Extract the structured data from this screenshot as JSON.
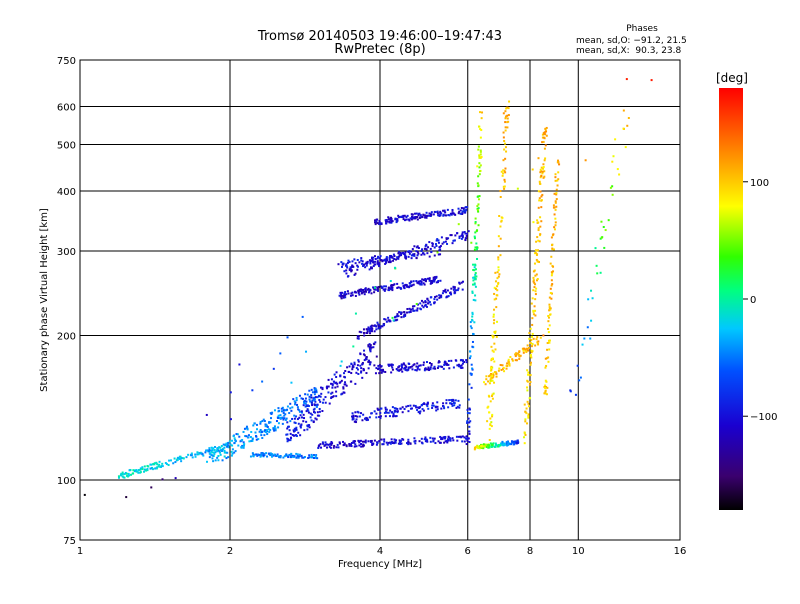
{
  "chart_data": {
    "type": "scatter",
    "title": "Tromsø 20140503 19:46:00–19:47:43",
    "subtitle": "RwPretec (8p)",
    "xlabel": "Frequency [MHz]",
    "ylabel": "Stationary phase Virtual Height [km]",
    "x_scale": "log",
    "y_scale": "log",
    "xlim": [
      1,
      16
    ],
    "ylim": [
      75,
      750
    ],
    "x_ticks": [
      1,
      2,
      4,
      6,
      8,
      10,
      16
    ],
    "x_tick_labels": [
      "1",
      "2",
      "4",
      "6",
      "8",
      "10",
      "16"
    ],
    "y_ticks": [
      75,
      100,
      200,
      300,
      400,
      500,
      600,
      750
    ],
    "y_tick_labels": [
      "75",
      "100",
      "200",
      "300",
      "400",
      "500",
      "600",
      "750"
    ],
    "grid": true,
    "phase_info": {
      "title": "Phases",
      "line_o": "mean, sd,O: −91.2, 21.5",
      "line_x": "mean, sd,X:  90.3, 23.8"
    },
    "colorbar": {
      "label": "[deg]",
      "min": -180,
      "max": 180,
      "ticks": [
        100,
        0,
        -100
      ],
      "tick_labels": [
        "100",
        "0",
        "−100"
      ],
      "colormap": "rainbow (black → violet → blue → cyan → green → yellow → red)"
    },
    "series": [
      {
        "traces": [
          {
            "f0": 1.2,
            "f1": 2.0,
            "h0": 102,
            "h1": 118,
            "n": 150,
            "ph0": -10,
            "ph1": -40,
            "jit": 0.03
          },
          {
            "f0": 1.8,
            "f1": 3.0,
            "h0": 110,
            "h1": 150,
            "n": 240,
            "ph0": -30,
            "ph1": -60,
            "jit": 0.09
          },
          {
            "f0": 2.2,
            "f1": 3.0,
            "h0": 113,
            "h1": 112,
            "n": 90,
            "ph0": -50,
            "ph1": -50,
            "jit": 0.02
          },
          {
            "f0": 2.6,
            "f1": 3.9,
            "h0": 125,
            "h1": 185,
            "n": 220,
            "ph0": -90,
            "ph1": -110,
            "jit": 0.12
          },
          {
            "f0": 3.0,
            "f1": 6.0,
            "h0": 118,
            "h1": 122,
            "n": 170,
            "ph0": -110,
            "ph1": -100,
            "jit": 0.03
          },
          {
            "f0": 3.5,
            "f1": 5.8,
            "h0": 135,
            "h1": 145,
            "n": 140,
            "ph0": -100,
            "ph1": -90,
            "jit": 0.05
          },
          {
            "f0": 3.9,
            "f1": 6.0,
            "h0": 170,
            "h1": 175,
            "n": 130,
            "ph0": -110,
            "ph1": -100,
            "jit": 0.04
          },
          {
            "f0": 3.6,
            "f1": 5.9,
            "h0": 200,
            "h1": 255,
            "n": 160,
            "ph0": -110,
            "ph1": -100,
            "jit": 0.04
          },
          {
            "f0": 3.3,
            "f1": 5.3,
            "h0": 242,
            "h1": 262,
            "n": 170,
            "ph0": -110,
            "ph1": -100,
            "jit": 0.03
          },
          {
            "f0": 3.4,
            "f1": 6.0,
            "h0": 270,
            "h1": 325,
            "n": 150,
            "ph0": -110,
            "ph1": -100,
            "jit": 0.05
          },
          {
            "f0": 3.3,
            "f1": 5.3,
            "h0": 280,
            "h1": 300,
            "n": 90,
            "ph0": -100,
            "ph1": -110,
            "jit": 0.04
          },
          {
            "f0": 3.9,
            "f1": 6.0,
            "h0": 345,
            "h1": 365,
            "n": 160,
            "ph0": -110,
            "ph1": -100,
            "jit": 0.03
          },
          {
            "f0": 6.0,
            "f1": 6.4,
            "h0": 120,
            "h1": 600,
            "n": 130,
            "ph0": -100,
            "ph1": 100,
            "jit": 0.06
          },
          {
            "f0": 6.6,
            "f1": 7.2,
            "h0": 120,
            "h1": 600,
            "n": 130,
            "ph0": 80,
            "ph1": 110,
            "jit": 0.08
          },
          {
            "f0": 6.2,
            "f1": 7.6,
            "h0": 117,
            "h1": 120,
            "n": 110,
            "ph0": 90,
            "ph1": -90,
            "jit": 0.02
          },
          {
            "f0": 7.8,
            "f1": 8.6,
            "h0": 120,
            "h1": 550,
            "n": 150,
            "ph0": 90,
            "ph1": 110,
            "jit": 0.07
          },
          {
            "f0": 8.6,
            "f1": 9.1,
            "h0": 150,
            "h1": 480,
            "n": 90,
            "ph0": 100,
            "ph1": 110,
            "jit": 0.05
          },
          {
            "f0": 6.5,
            "f1": 8.5,
            "h0": 160,
            "h1": 200,
            "n": 80,
            "ph0": 100,
            "ph1": 110,
            "jit": 0.04
          },
          {
            "f0": 9.5,
            "f1": 12.5,
            "h0": 120,
            "h1": 610,
            "n": 40,
            "ph0": -100,
            "ph1": 110,
            "jit": 0.15
          },
          {
            "f0": 1.0,
            "f1": 16.0,
            "h0": 80,
            "h1": 700,
            "n": 40,
            "ph0": -180,
            "ph1": 180,
            "jit": 0.4
          }
        ]
      }
    ]
  }
}
